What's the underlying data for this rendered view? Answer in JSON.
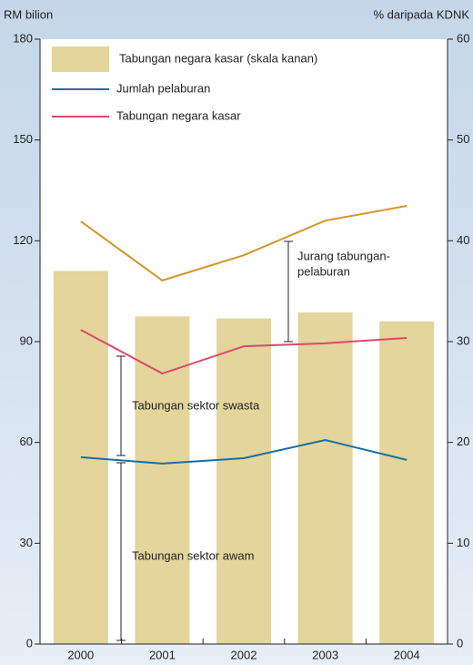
{
  "chart_data": {
    "type": "bar-line",
    "y_label": "RM bilion",
    "y2_label": "% daripada KDNK",
    "categories": [
      "2000",
      "2001",
      "2002",
      "2003",
      "2004"
    ],
    "ylim": [
      0,
      180
    ],
    "yticks": [
      0,
      30,
      60,
      90,
      120,
      150,
      180
    ],
    "y2lim": [
      0,
      60
    ],
    "y2ticks": [
      0,
      10,
      20,
      30,
      40,
      50,
      60
    ],
    "series": [
      {
        "name": "Tabungan negara kasar (skala kanan)",
        "type": "bar",
        "axis": "y2",
        "color": "#e3d59b",
        "values": [
          37.0,
          32.5,
          32.3,
          32.9,
          32.0
        ]
      },
      {
        "name": "Jumlah pelaburan",
        "type": "line",
        "color": "#1a6fa0",
        "values": [
          55.6,
          53.7,
          55.3,
          60.7,
          54.8
        ]
      },
      {
        "name": "Tabungan negara kasar",
        "type": "line",
        "color": "#e0476b",
        "values": [
          93.5,
          80.5,
          88.6,
          89.5,
          91.1
        ]
      },
      {
        "type": "line",
        "color": "#d4952e",
        "values": [
          125.8,
          108.2,
          115.7,
          126.0,
          130.4
        ]
      }
    ],
    "annotations": [
      [
        "Jurang tabungan-",
        "pelaburan"
      ],
      [
        "Tabungan sektor swasta"
      ],
      [
        "Tabungan sektor awam"
      ]
    ]
  }
}
